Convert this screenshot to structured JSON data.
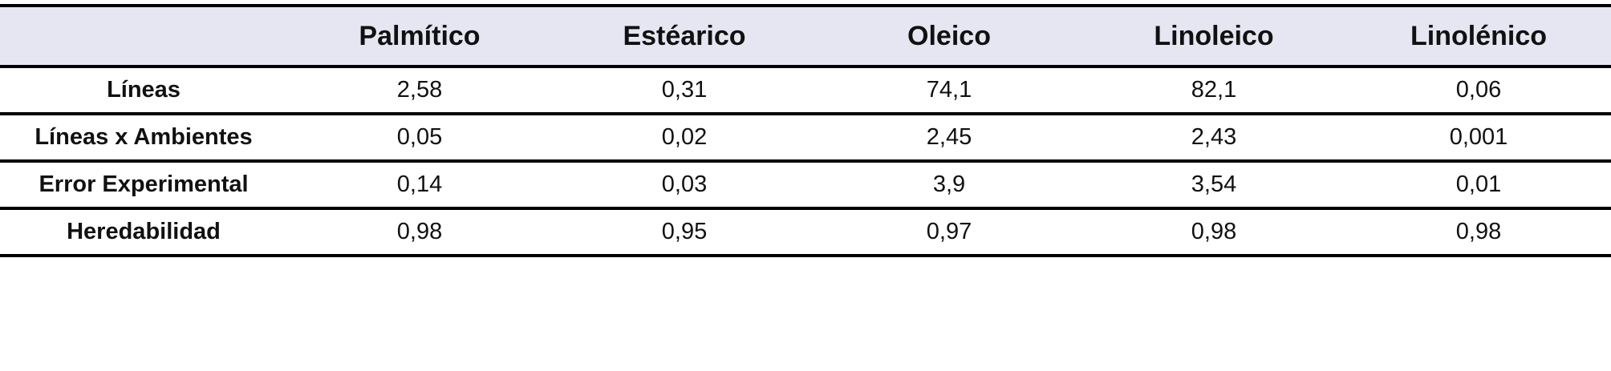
{
  "table": {
    "columns": [
      "Palmítico",
      "Estéarico",
      "Oleico",
      "Linoleico",
      "Linolénico"
    ],
    "rows": [
      {
        "label": "Líneas",
        "cells": [
          "2,58",
          "0,31",
          "74,1",
          "82,1",
          "0,06"
        ]
      },
      {
        "label": "Líneas x Ambientes",
        "cells": [
          "0,05",
          "0,02",
          "2,45",
          "2,43",
          "0,001"
        ]
      },
      {
        "label": "Error Experimental",
        "cells": [
          "0,14",
          "0,03",
          "3,9",
          "3,54",
          "0,01"
        ]
      },
      {
        "label": "Heredabilidad",
        "cells": [
          "0,98",
          "0,95",
          "0,97",
          "0,98",
          "0,98"
        ]
      }
    ]
  }
}
